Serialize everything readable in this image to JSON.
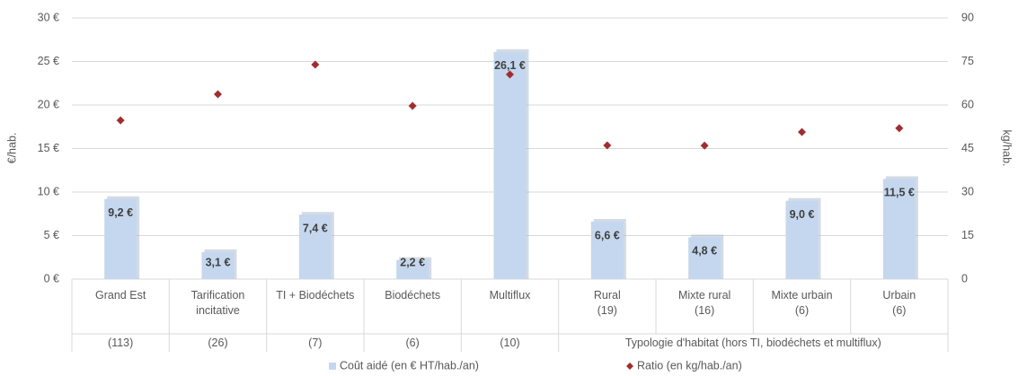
{
  "chart_data": {
    "type": "bar_scatter",
    "ylabel": "€/hab.",
    "y2label": "kg/hab.",
    "categories": [
      "Grand Est",
      "Tarification\nincitative",
      "TI + Biodéchets",
      "Biodéchets",
      "Multiflux",
      "Rural\n(19)",
      "Mixte rural\n(16)",
      "Mixte urbain\n(6)",
      "Urbain\n(6)"
    ],
    "category_counts": [
      "(113)",
      "(26)",
      "(7)",
      "(6)",
      "(10)"
    ],
    "group_label": "Typologie d'habitat (hors TI, biodéchets et multiflux)",
    "series": [
      {
        "name": "Coût aidé (en € HT/hab./an)",
        "kind": "bar",
        "color": "#c5d7ee",
        "values": [
          9.2,
          3.1,
          7.4,
          2.2,
          26.1,
          6.6,
          4.8,
          9.0,
          11.5
        ],
        "value_labels": [
          "9,2 €",
          "3,1 €",
          "7,4 €",
          "2,2 €",
          "26,1 €",
          "6,6 €",
          "4,8 €",
          "9,0 €",
          "11,5 €"
        ]
      },
      {
        "name": "Ratio (en kg/hab./an)",
        "kind": "diamond",
        "axis": "y2",
        "color": "#a02e2e",
        "values": [
          54.7,
          63.7,
          73.9,
          59.7,
          70.5,
          46.1,
          46.0,
          50.7,
          52.0
        ]
      }
    ],
    "ylim": [
      0,
      30
    ],
    "yticks": [
      {
        "value": 0,
        "label": "0 €"
      },
      {
        "value": 5,
        "label": "5 €"
      },
      {
        "value": 10,
        "label": "10 €"
      },
      {
        "value": 15,
        "label": "15 €"
      },
      {
        "value": 20,
        "label": "20 €"
      },
      {
        "value": 25,
        "label": "25 €"
      },
      {
        "value": 30,
        "label": "30 €"
      }
    ],
    "y2lim": [
      0,
      90
    ],
    "y2ticks": [
      0,
      15,
      30,
      45,
      60,
      75,
      90
    ],
    "grid": true,
    "legend": "bottom"
  }
}
